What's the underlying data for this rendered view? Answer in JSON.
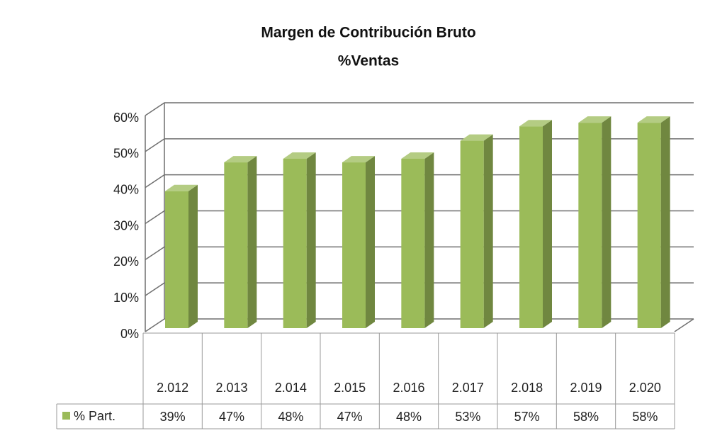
{
  "chart_data": {
    "type": "bar",
    "title": "Margen de Contribución Bruto",
    "subtitle": "%Ventas",
    "categories": [
      "2.012",
      "2.013",
      "2.014",
      "2.015",
      "2.016",
      "2.017",
      "2.018",
      "2.019",
      "2.020"
    ],
    "series": [
      {
        "name": "% Part.",
        "color": "#9bbb59",
        "values": [
          39,
          47,
          48,
          47,
          48,
          53,
          57,
          58,
          58
        ],
        "value_labels": [
          "39%",
          "47%",
          "48%",
          "47%",
          "48%",
          "53%",
          "57%",
          "58%",
          "58%"
        ]
      }
    ],
    "ylim": [
      0,
      60
    ],
    "yticks": [
      {
        "value": 0,
        "label": "0%"
      },
      {
        "value": 10,
        "label": "10%"
      },
      {
        "value": 20,
        "label": "20%"
      },
      {
        "value": 30,
        "label": "30%"
      },
      {
        "value": 40,
        "label": "40%"
      },
      {
        "value": 50,
        "label": "50%"
      },
      {
        "value": 60,
        "label": "60%"
      }
    ],
    "grid": true
  }
}
